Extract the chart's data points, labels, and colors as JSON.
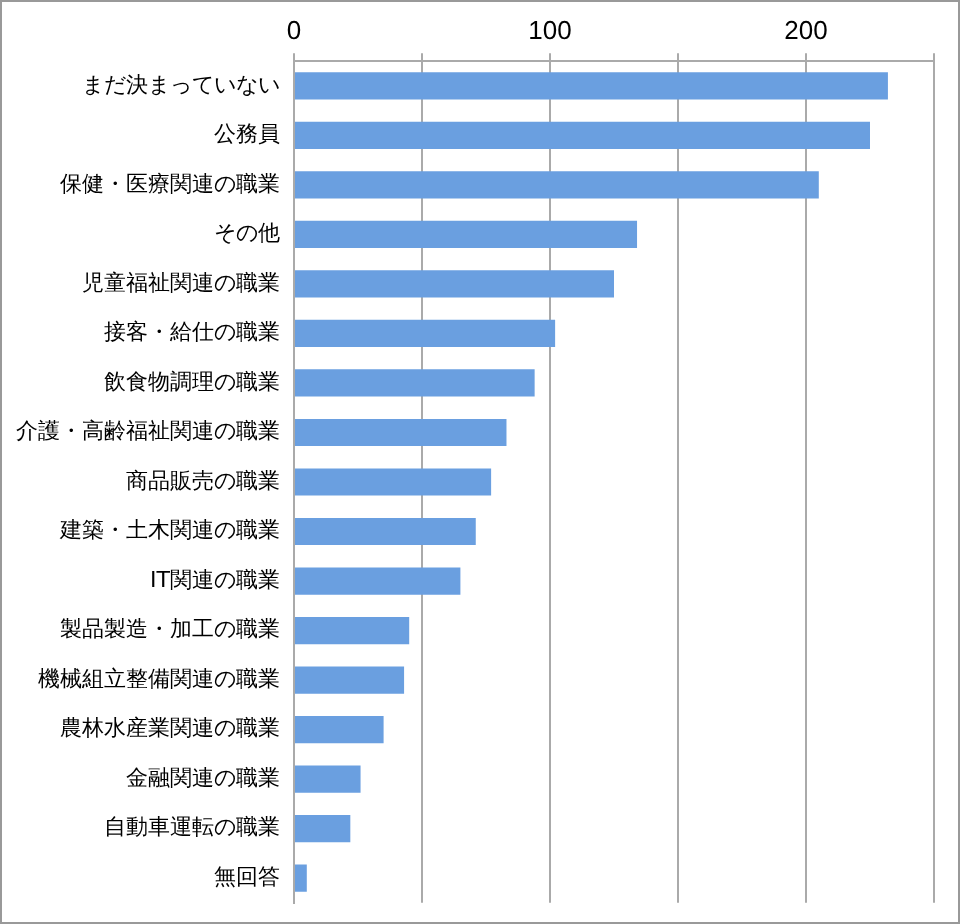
{
  "chart_data": {
    "type": "bar",
    "orientation": "horizontal",
    "categories": [
      "まだ決まっていない",
      "公務員",
      "保健・医療関連の職業",
      "その他",
      "児童福祉関連の職業",
      "接客・給仕の職業",
      "飲食物調理の職業",
      "介護・高齢福祉関連の職業",
      "商品販売の職業",
      "建築・土木関連の職業",
      "IT関連の職業",
      "製品製造・加工の職業",
      "機械組立整備関連の職業",
      "農林水産業関連の職業",
      "金融関連の職業",
      "自動車運転の職業",
      "無回答"
    ],
    "values": [
      232,
      225,
      205,
      134,
      125,
      102,
      94,
      83,
      77,
      71,
      65,
      45,
      43,
      35,
      26,
      22,
      5
    ],
    "color": "#6a9fe0",
    "xlim": [
      0,
      250
    ],
    "xticks": [
      0,
      {
        "value": 50,
        "label": null
      },
      100,
      {
        "value": 150,
        "label": null
      },
      200,
      {
        "value": 250,
        "label": null
      }
    ],
    "grid": "x",
    "legend": false
  }
}
